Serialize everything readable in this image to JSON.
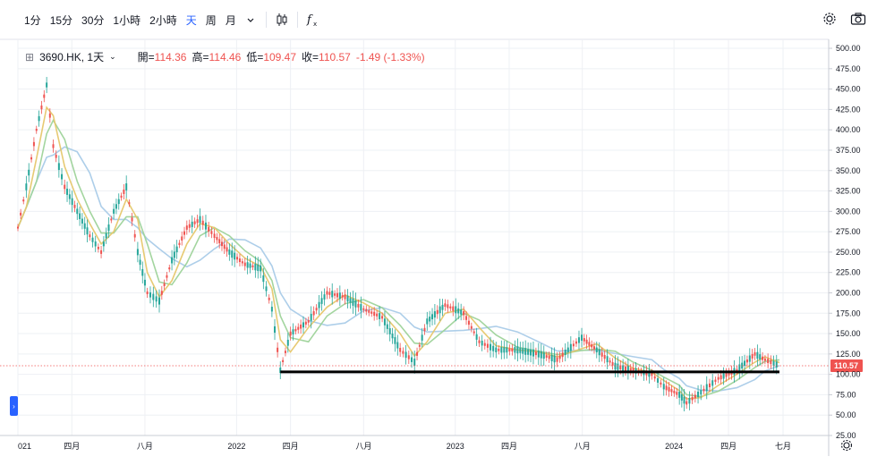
{
  "toolbar": {
    "intervals": [
      {
        "label": "1分"
      },
      {
        "label": "15分"
      },
      {
        "label": "30分"
      },
      {
        "label": "1小時"
      },
      {
        "label": "2小時"
      },
      {
        "label": "天",
        "active": true
      },
      {
        "label": "周"
      },
      {
        "label": "月"
      }
    ],
    "icons": [
      "chevron-down-icon",
      "candlestick-icon",
      "function-icon"
    ],
    "right_icons": [
      "settings-icon",
      "camera-icon"
    ]
  },
  "legend": {
    "symbol": "3690.HK, 1天",
    "open_label": "開=",
    "open": "114.36",
    "high_label": "高=",
    "high": "114.46",
    "low_label": "低=",
    "low": "109.47",
    "close_label": "收=",
    "close": "110.57",
    "change": "-1.49 (-1.33%)"
  },
  "colors": {
    "up": "#26a69a",
    "down": "#ef5350",
    "ma_fast": "#e6c76b",
    "ma_mid": "#9ed39a",
    "ma_slow": "#a9cbe8",
    "support": "#000000",
    "grid": "#eef0f4"
  },
  "chart_data": {
    "type": "line",
    "title": "",
    "ylim": [
      25,
      510
    ],
    "y_scale": "linear",
    "grid": true,
    "y_ticks": [
      "500.00",
      "475.00",
      "450.00",
      "425.00",
      "400.00",
      "375.00",
      "350.00",
      "325.00",
      "300.00",
      "275.00",
      "250.00",
      "225.00",
      "200.00",
      "175.00",
      "150.00",
      "125.00",
      "100.00",
      "75.00",
      "50.00",
      "25.00"
    ],
    "y_tick_values": [
      500,
      475,
      450,
      425,
      400,
      375,
      350,
      325,
      300,
      275,
      250,
      225,
      200,
      175,
      150,
      125,
      100,
      75,
      50,
      25
    ],
    "x_ticks": [
      "021",
      "四月",
      "八月",
      "2022",
      "四月",
      "八月",
      "2023",
      "四月",
      "八月",
      "2024",
      "四月",
      "七月"
    ],
    "x_tick_dates": [
      "2021-01-01",
      "2021-04-01",
      "2021-08-01",
      "2022-01-01",
      "2022-04-01",
      "2022-08-01",
      "2023-01-01",
      "2023-04-01",
      "2023-08-01",
      "2024-01-01",
      "2024-04-01",
      "2024-07-01"
    ],
    "last_price_label": "110.57",
    "last_price": 110.57,
    "support_line": {
      "value": 103,
      "from": "2022-03-15",
      "to": "2024-06-25"
    },
    "series": [
      {
        "values": [
          {
            "x": "2021-01-01",
            "y": 280
          },
          {
            "x": "2021-01-15",
            "y": 330
          },
          {
            "x": "2021-02-01",
            "y": 400
          },
          {
            "x": "2021-02-18",
            "y": 455
          },
          {
            "x": "2021-03-01",
            "y": 380
          },
          {
            "x": "2021-03-20",
            "y": 330
          },
          {
            "x": "2021-04-10",
            "y": 300
          },
          {
            "x": "2021-05-01",
            "y": 270
          },
          {
            "x": "2021-05-20",
            "y": 250
          },
          {
            "x": "2021-06-10",
            "y": 300
          },
          {
            "x": "2021-07-01",
            "y": 330
          },
          {
            "x": "2021-07-20",
            "y": 250
          },
          {
            "x": "2021-08-05",
            "y": 200
          },
          {
            "x": "2021-08-25",
            "y": 190
          },
          {
            "x": "2021-09-15",
            "y": 240
          },
          {
            "x": "2021-10-10",
            "y": 280
          },
          {
            "x": "2021-11-01",
            "y": 290
          },
          {
            "x": "2021-11-25",
            "y": 270
          },
          {
            "x": "2021-12-20",
            "y": 250
          },
          {
            "x": "2022-01-15",
            "y": 235
          },
          {
            "x": "2022-02-10",
            "y": 230
          },
          {
            "x": "2022-03-01",
            "y": 180
          },
          {
            "x": "2022-03-15",
            "y": 105
          },
          {
            "x": "2022-04-01",
            "y": 150
          },
          {
            "x": "2022-05-01",
            "y": 165
          },
          {
            "x": "2022-06-01",
            "y": 200
          },
          {
            "x": "2022-07-01",
            "y": 195
          },
          {
            "x": "2022-08-01",
            "y": 180
          },
          {
            "x": "2022-09-01",
            "y": 170
          },
          {
            "x": "2022-10-01",
            "y": 130
          },
          {
            "x": "2022-10-25",
            "y": 115
          },
          {
            "x": "2022-11-15",
            "y": 165
          },
          {
            "x": "2022-12-15",
            "y": 185
          },
          {
            "x": "2023-01-15",
            "y": 175
          },
          {
            "x": "2023-02-10",
            "y": 140
          },
          {
            "x": "2023-03-10",
            "y": 130
          },
          {
            "x": "2023-04-15",
            "y": 130
          },
          {
            "x": "2023-05-20",
            "y": 125
          },
          {
            "x": "2023-06-20",
            "y": 118
          },
          {
            "x": "2023-07-31",
            "y": 145
          },
          {
            "x": "2023-08-25",
            "y": 130
          },
          {
            "x": "2023-09-25",
            "y": 110
          },
          {
            "x": "2023-10-25",
            "y": 105
          },
          {
            "x": "2023-11-25",
            "y": 100
          },
          {
            "x": "2023-12-15",
            "y": 85
          },
          {
            "x": "2024-01-10",
            "y": 75
          },
          {
            "x": "2024-01-22",
            "y": 65
          },
          {
            "x": "2024-02-15",
            "y": 78
          },
          {
            "x": "2024-03-15",
            "y": 95
          },
          {
            "x": "2024-04-15",
            "y": 105
          },
          {
            "x": "2024-05-15",
            "y": 125
          },
          {
            "x": "2024-06-01",
            "y": 118
          },
          {
            "x": "2024-06-25",
            "y": 110.57
          }
        ]
      }
    ]
  }
}
